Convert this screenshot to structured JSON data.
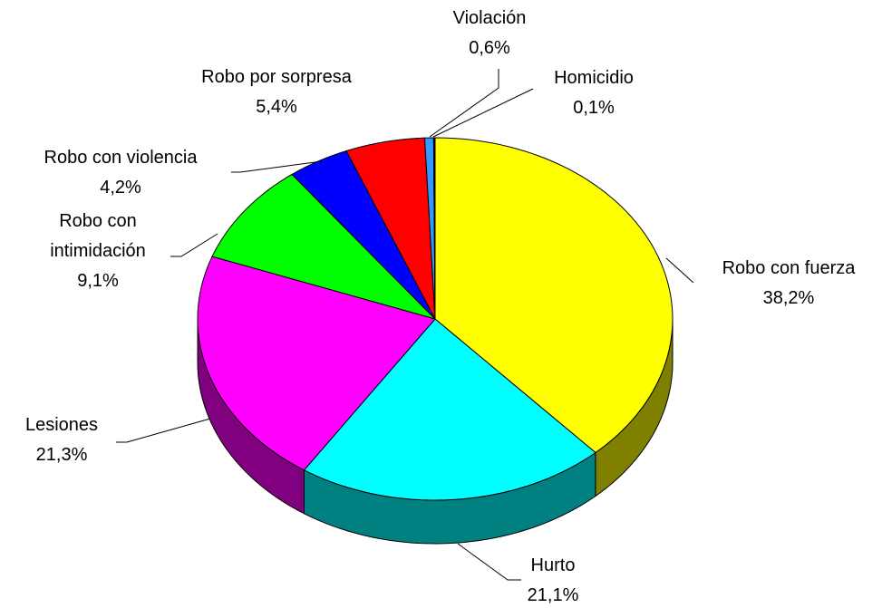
{
  "chart_data": {
    "type": "pie",
    "categories": [
      "Robo con fuerza",
      "Hurto",
      "Lesiones",
      "Robo con intimidación",
      "Robo con violencia",
      "Robo por sorpresa",
      "Violación",
      "Homicidio"
    ],
    "values": [
      38.2,
      21.1,
      21.3,
      9.1,
      4.2,
      5.4,
      0.6,
      0.1
    ],
    "value_labels": [
      "38,2%",
      "21,1%",
      "21,3%",
      "9,1%",
      "4,2%",
      "5,4%",
      "0,6%",
      "0,1%"
    ],
    "colors": [
      "#ffff00",
      "#00ffff",
      "#ff00ff",
      "#00ff00",
      "#0000ff",
      "#ff0000",
      "#3399ff",
      "#000080"
    ]
  }
}
